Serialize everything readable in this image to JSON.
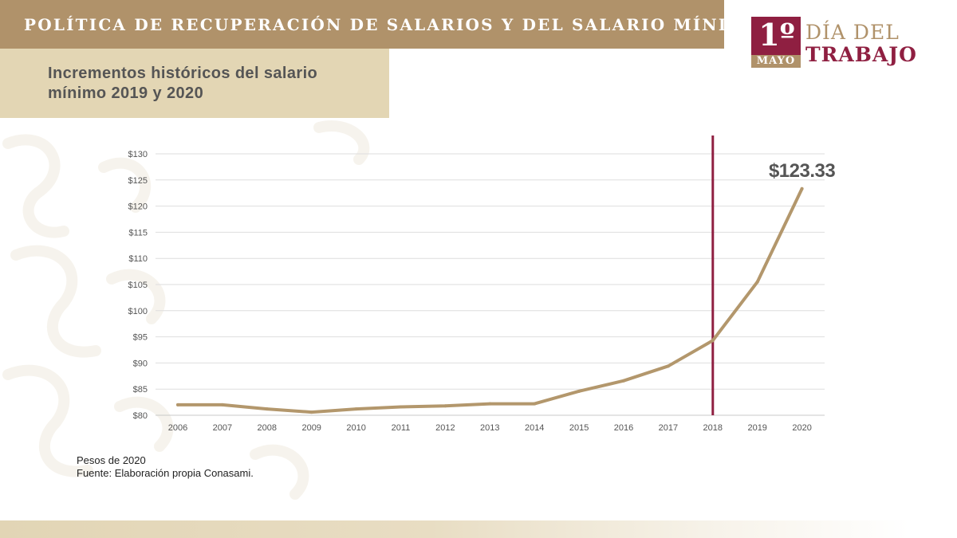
{
  "header": {
    "title": "POLÍTICA DE RECUPERACIÓN DE SALARIOS Y DEL SALARIO MÍNIMO"
  },
  "subtitle": {
    "line1": "Incrementos históricos del salario",
    "line2": "mínimo 2019 y 2020"
  },
  "logo": {
    "number": "1º",
    "month": "MAYO",
    "line1": "DÍA DEL",
    "line2": "TRABAJO"
  },
  "colors": {
    "gold": "#b0926a",
    "beige": "#e3d6b4",
    "maroon": "#8f1f41",
    "line": "#b3976c",
    "text_gray": "#555555"
  },
  "notes": {
    "units": "Pesos de 2020",
    "source": "Fuente: Elaboración propia Conasami."
  },
  "chart_data": {
    "type": "line",
    "title": "Incrementos históricos del salario mínimo 2019 y 2020",
    "xlabel": "",
    "ylabel": "",
    "x": [
      "2006",
      "2007",
      "2008",
      "2009",
      "2010",
      "2011",
      "2012",
      "2013",
      "2014",
      "2015",
      "2016",
      "2017",
      "2018",
      "2019",
      "2020"
    ],
    "series": [
      {
        "name": "Salario mínimo (pesos de 2020)",
        "values": [
          82.0,
          82.0,
          81.2,
          80.6,
          81.2,
          81.6,
          81.8,
          82.2,
          82.2,
          84.6,
          86.6,
          89.4,
          94.3,
          105.5,
          123.33
        ]
      }
    ],
    "y_ticks": [
      80,
      85,
      90,
      95,
      100,
      105,
      110,
      115,
      120,
      125,
      130
    ],
    "y_tick_labels": [
      "$80",
      "$85",
      "$90",
      "$95",
      "$100",
      "$105",
      "$110",
      "$115",
      "$120",
      "$125",
      "$130"
    ],
    "ylim": [
      80,
      130
    ],
    "grid": true,
    "annotations": [
      {
        "text": "$123.33",
        "x": "2020",
        "y": 123.33
      }
    ],
    "reference_line": {
      "x": "2018"
    }
  }
}
